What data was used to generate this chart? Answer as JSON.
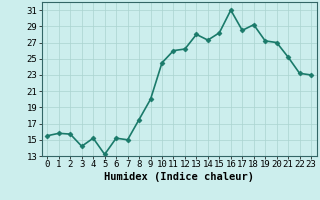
{
  "x": [
    0,
    1,
    2,
    3,
    4,
    5,
    6,
    7,
    8,
    9,
    10,
    11,
    12,
    13,
    14,
    15,
    16,
    17,
    18,
    19,
    20,
    21,
    22,
    23
  ],
  "y": [
    15.5,
    15.8,
    15.7,
    14.2,
    15.2,
    13.2,
    15.2,
    15.0,
    17.5,
    20.0,
    24.5,
    26.0,
    26.2,
    28.0,
    27.3,
    28.2,
    31.0,
    28.5,
    29.2,
    27.2,
    27.0,
    25.2,
    23.2,
    23.0
  ],
  "line_color": "#1a7a6a",
  "marker": "D",
  "marker_size": 2.5,
  "bg_color": "#cceeed",
  "grid_color": "#aad4d0",
  "xlabel": "Humidex (Indice chaleur)",
  "ylim": [
    13,
    32
  ],
  "xlim": [
    -0.5,
    23.5
  ],
  "yticks": [
    13,
    15,
    17,
    19,
    21,
    23,
    25,
    27,
    29,
    31
  ],
  "xticks": [
    0,
    1,
    2,
    3,
    4,
    5,
    6,
    7,
    8,
    9,
    10,
    11,
    12,
    13,
    14,
    15,
    16,
    17,
    18,
    19,
    20,
    21,
    22,
    23
  ],
  "xtick_labels": [
    "0",
    "1",
    "2",
    "3",
    "4",
    "5",
    "6",
    "7",
    "8",
    "9",
    "10",
    "11",
    "12",
    "13",
    "14",
    "15",
    "16",
    "17",
    "18",
    "19",
    "20",
    "21",
    "22",
    "23"
  ],
  "line_width": 1.2,
  "xlabel_fontsize": 7.5,
  "tick_fontsize": 6.5
}
